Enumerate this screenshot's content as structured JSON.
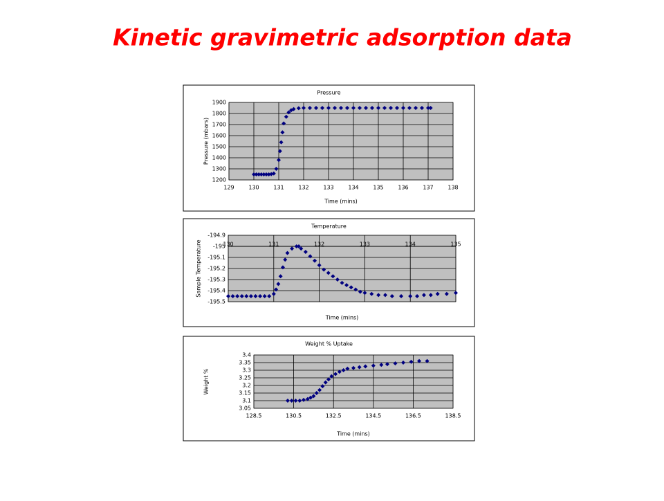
{
  "title": "Kinetic gravimetric adsorption data",
  "chart_data": [
    {
      "type": "scatter",
      "title": "Pressure",
      "x_label": "Time (mins)",
      "y_label": "Pressure (mbars)",
      "xlim": [
        129,
        138
      ],
      "xticks": [
        129,
        130,
        131,
        132,
        133,
        134,
        135,
        136,
        137,
        138
      ],
      "ylim": [
        1200,
        1900
      ],
      "yticks": [
        1200,
        1300,
        1400,
        1500,
        1600,
        1700,
        1800,
        1900
      ],
      "grid": true,
      "color": "#000080",
      "x": [
        130.0,
        130.1,
        130.2,
        130.3,
        130.4,
        130.5,
        130.6,
        130.7,
        130.8,
        130.9,
        131.0,
        131.05,
        131.1,
        131.15,
        131.2,
        131.3,
        131.4,
        131.5,
        131.6,
        131.8,
        132.0,
        132.25,
        132.5,
        132.75,
        133.0,
        133.25,
        133.5,
        133.75,
        134.0,
        134.25,
        134.5,
        134.75,
        135.0,
        135.25,
        135.5,
        135.75,
        136.0,
        136.25,
        136.5,
        136.75,
        137.0,
        137.1
      ],
      "values": [
        1250,
        1250,
        1250,
        1250,
        1250,
        1250,
        1250,
        1252,
        1258,
        1300,
        1380,
        1460,
        1540,
        1630,
        1710,
        1770,
        1810,
        1830,
        1840,
        1848,
        1850,
        1850,
        1850,
        1850,
        1850,
        1850,
        1850,
        1850,
        1850,
        1850,
        1850,
        1850,
        1850,
        1850,
        1850,
        1850,
        1850,
        1850,
        1850,
        1850,
        1850,
        1850
      ]
    },
    {
      "type": "scatter",
      "title": "Temperature",
      "x_label": "Time (mins)",
      "y_label": "Sample Temperature",
      "xlim": [
        130,
        135
      ],
      "xticks": [
        130,
        131,
        132,
        133,
        134,
        135
      ],
      "ylim": [
        -195.5,
        -194.9
      ],
      "yticks": [
        -195.5,
        -195.4,
        -195.3,
        -195.2,
        -195.1,
        -195,
        -194.9
      ],
      "xaxis_crossing": -195,
      "grid": true,
      "color": "#000080",
      "x": [
        130.0,
        130.1,
        130.2,
        130.3,
        130.4,
        130.5,
        130.6,
        130.7,
        130.8,
        130.9,
        131.0,
        131.05,
        131.1,
        131.15,
        131.2,
        131.25,
        131.3,
        131.4,
        131.5,
        131.55,
        131.6,
        131.7,
        131.8,
        131.9,
        132.0,
        132.1,
        132.2,
        132.3,
        132.4,
        132.5,
        132.6,
        132.7,
        132.8,
        132.9,
        133.0,
        133.15,
        133.3,
        133.45,
        133.6,
        133.8,
        134.0,
        134.15,
        134.3,
        134.45,
        134.6,
        134.8,
        135.0
      ],
      "values": [
        -195.45,
        -195.45,
        -195.45,
        -195.45,
        -195.45,
        -195.45,
        -195.45,
        -195.45,
        -195.45,
        -195.45,
        -195.43,
        -195.39,
        -195.34,
        -195.27,
        -195.19,
        -195.12,
        -195.06,
        -195.02,
        -195.0,
        -195.0,
        -195.02,
        -195.05,
        -195.09,
        -195.13,
        -195.17,
        -195.21,
        -195.24,
        -195.27,
        -195.3,
        -195.33,
        -195.35,
        -195.37,
        -195.39,
        -195.41,
        -195.42,
        -195.43,
        -195.44,
        -195.44,
        -195.45,
        -195.45,
        -195.45,
        -195.45,
        -195.44,
        -195.44,
        -195.43,
        -195.43,
        -195.42
      ]
    },
    {
      "type": "scatter",
      "title": "Weight % Uptake",
      "x_label": "Time (mins)",
      "y_label": "Weight %",
      "xlim": [
        128.5,
        138.5
      ],
      "xticks": [
        128.5,
        130.5,
        132.5,
        134.5,
        136.5,
        138.5
      ],
      "ylim": [
        3.05,
        3.4
      ],
      "yticks": [
        3.05,
        3.1,
        3.15,
        3.2,
        3.25,
        3.3,
        3.35,
        3.4
      ],
      "grid": true,
      "color": "#000080",
      "x": [
        130.2,
        130.4,
        130.6,
        130.8,
        131.0,
        131.2,
        131.35,
        131.5,
        131.65,
        131.8,
        131.95,
        132.1,
        132.25,
        132.4,
        132.6,
        132.8,
        133.0,
        133.2,
        133.5,
        133.8,
        134.1,
        134.5,
        134.9,
        135.2,
        135.6,
        136.0,
        136.4,
        136.8,
        137.2
      ],
      "values": [
        3.1,
        3.1,
        3.1,
        3.1,
        3.105,
        3.11,
        3.12,
        3.13,
        3.15,
        3.17,
        3.195,
        3.22,
        3.24,
        3.26,
        3.275,
        3.29,
        3.3,
        3.31,
        3.315,
        3.32,
        3.325,
        3.33,
        3.335,
        3.34,
        3.345,
        3.35,
        3.355,
        3.36,
        3.36
      ]
    }
  ]
}
